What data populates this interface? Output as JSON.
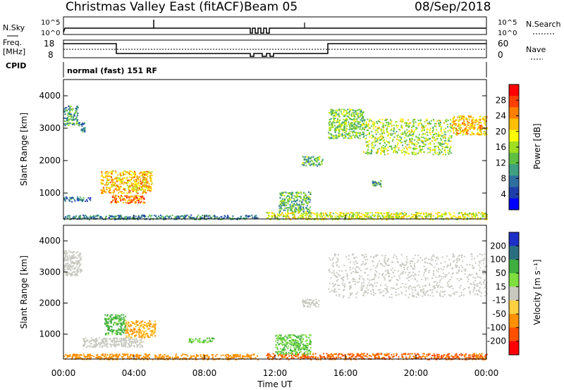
{
  "header": {
    "station": "Christmas Valley East (fitACF)",
    "beam": "Beam 05",
    "date": "08/Sep/2018"
  },
  "panels": {
    "nsky_label": "N.Sky",
    "nsky_ticks": [
      "10^5",
      "10^0"
    ],
    "nsearch_label": "N.Search",
    "nsearch_ticks": [
      "10^5",
      "10^0"
    ],
    "freq_label": "Freq.",
    "freq_unit": "[MHz]",
    "freq_ticks": [
      "18",
      "8"
    ],
    "nave_label": "Nave",
    "nave_ticks": [
      "60",
      "0"
    ],
    "cpid_label": "CPID",
    "cpid_text": "normal (fast) 151 RF"
  },
  "chart_data": [
    {
      "type": "heatmap",
      "name": "power",
      "ylabel": "Slant Range [km]",
      "yticks": [
        "4000",
        "3000",
        "2000",
        "1000"
      ],
      "ytick_values": [
        4000,
        3000,
        2000,
        1000
      ],
      "ylim": [
        200,
        4500
      ],
      "xlim": [
        0,
        24
      ],
      "colorbar_label": "Power [dB]",
      "colorbar_ticks": [
        "28",
        "24",
        "20",
        "16",
        "12",
        "8",
        "4"
      ],
      "colorbar_values": [
        28,
        24,
        20,
        16,
        12,
        8,
        4
      ],
      "colorbar_range": [
        0,
        32
      ],
      "colors": [
        "#0000ff",
        "#1e3fa8",
        "#2e6fa0",
        "#3f9f80",
        "#5fbf40",
        "#9fdf20",
        "#ffff00",
        "#ffbf00",
        "#ff7f00",
        "#ff4000",
        "#ff0000"
      ],
      "regions": [
        {
          "t0": 0.0,
          "t1": 0.8,
          "r0": 3100,
          "r1": 3700,
          "level": 10
        },
        {
          "t0": 0.8,
          "t1": 1.2,
          "r0": 2900,
          "r1": 3200,
          "level": 8
        },
        {
          "t0": 2.1,
          "t1": 5.0,
          "r0": 1000,
          "r1": 1700,
          "level": 22
        },
        {
          "t0": 2.6,
          "t1": 4.6,
          "r0": 700,
          "r1": 950,
          "level": 26
        },
        {
          "t0": 0.0,
          "t1": 1.5,
          "r0": 750,
          "r1": 900,
          "level": 6
        },
        {
          "t0": 12.2,
          "t1": 14.0,
          "r0": 400,
          "r1": 1050,
          "level": 12
        },
        {
          "t0": 11.5,
          "t1": 24.0,
          "r0": 200,
          "r1": 420,
          "level": 18
        },
        {
          "t0": 0.0,
          "t1": 11.0,
          "r0": 200,
          "r1": 340,
          "level": 8
        },
        {
          "t0": 13.5,
          "t1": 14.7,
          "r0": 1850,
          "r1": 2150,
          "level": 12
        },
        {
          "t0": 15.0,
          "t1": 17.0,
          "r0": 2700,
          "r1": 3600,
          "level": 14
        },
        {
          "t0": 17.0,
          "t1": 22.0,
          "r0": 2200,
          "r1": 3300,
          "level": 16
        },
        {
          "t0": 22.0,
          "t1": 24.0,
          "r0": 2800,
          "r1": 3400,
          "level": 22
        },
        {
          "t0": 17.5,
          "t1": 18.0,
          "r0": 1200,
          "r1": 1400,
          "level": 10
        }
      ]
    },
    {
      "type": "heatmap",
      "name": "velocity",
      "ylabel": "Slant Range [km]",
      "xlabel": "Time UT",
      "yticks": [
        "4000",
        "3000",
        "2000",
        "1000"
      ],
      "ytick_values": [
        4000,
        3000,
        2000,
        1000
      ],
      "ylim": [
        200,
        4500
      ],
      "xlim": [
        0,
        24
      ],
      "xticks": [
        "00:00",
        "04:00",
        "08:00",
        "12:00",
        "16:00",
        "20:00",
        "00:00"
      ],
      "xtick_values": [
        0,
        4,
        8,
        12,
        16,
        20,
        24
      ],
      "colorbar_label": "Velocity [m s⁻¹]",
      "colorbar_ticks": [
        "200",
        "100",
        "50",
        "15",
        "-15",
        "-50",
        "-100",
        "-200"
      ],
      "colorbar_colors": [
        "#1e2fc8",
        "#2a6f80",
        "#3fae3f",
        "#7fdf3f",
        "#c8c8c0",
        "#ffd040",
        "#ff9000",
        "#ff5000",
        "#ff0000"
      ],
      "regions": [
        {
          "t0": 0.0,
          "t1": 1.0,
          "r0": 2900,
          "r1": 3700,
          "velocity": 0
        },
        {
          "t0": 2.3,
          "t1": 3.5,
          "r0": 1000,
          "r1": 1650,
          "velocity": 40
        },
        {
          "t0": 3.5,
          "t1": 5.2,
          "r0": 900,
          "r1": 1450,
          "velocity": -30
        },
        {
          "t0": 1.0,
          "t1": 4.5,
          "r0": 600,
          "r1": 900,
          "velocity": 0
        },
        {
          "t0": 0.0,
          "t1": 11.0,
          "r0": 200,
          "r1": 380,
          "velocity": -60
        },
        {
          "t0": 11.5,
          "t1": 24.0,
          "r0": 200,
          "r1": 400,
          "velocity": -80
        },
        {
          "t0": 12.0,
          "t1": 14.0,
          "r0": 350,
          "r1": 1000,
          "velocity": 30
        },
        {
          "t0": 15.0,
          "t1": 24.0,
          "r0": 2200,
          "r1": 3600,
          "velocity": 0
        },
        {
          "t0": 13.5,
          "t1": 14.5,
          "r0": 1900,
          "r1": 2150,
          "velocity": 0
        },
        {
          "t0": 7.0,
          "t1": 8.5,
          "r0": 750,
          "r1": 900,
          "velocity": 30
        }
      ]
    }
  ]
}
